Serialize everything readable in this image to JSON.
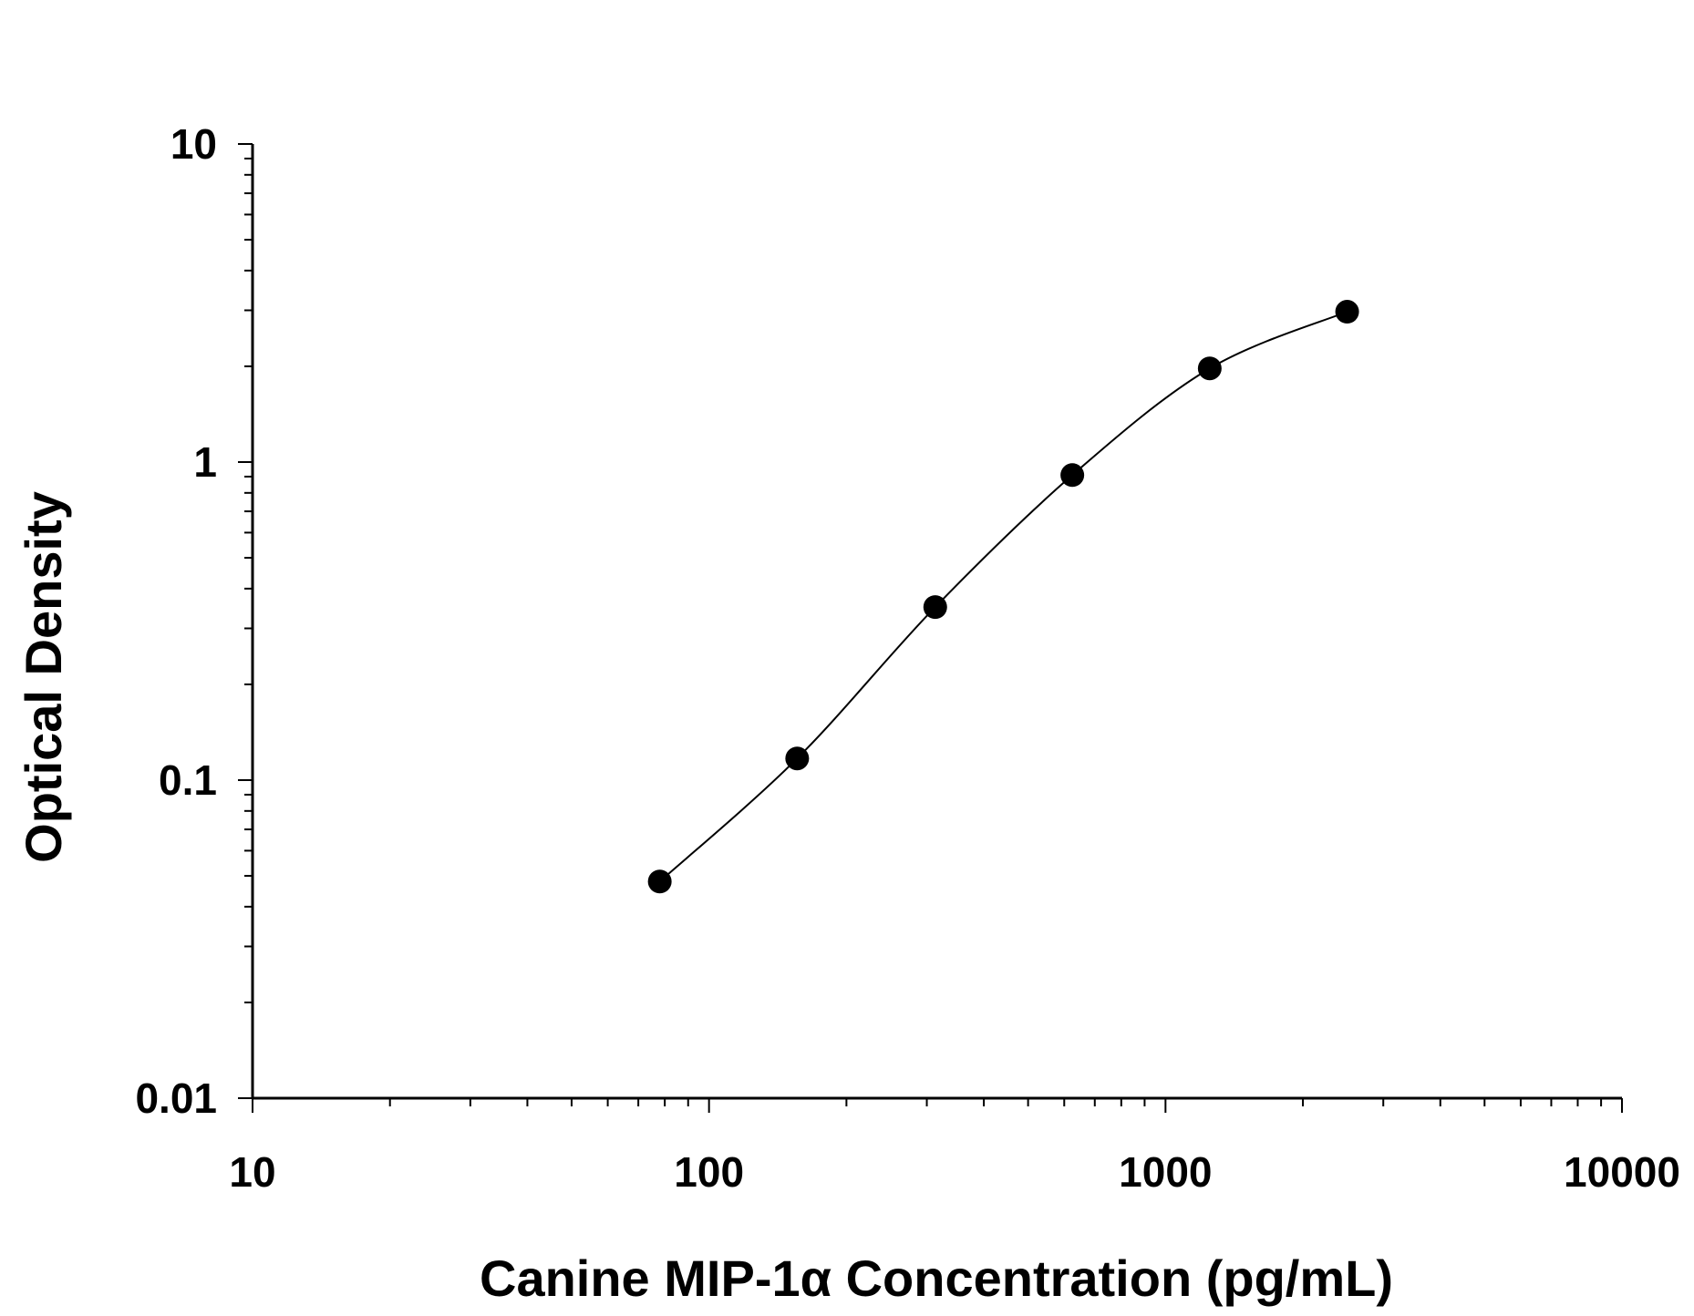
{
  "chart_data": {
    "type": "scatter",
    "xlabel": "Canine MIP-1α Concentration (pg/mL)",
    "ylabel": "Optical Density",
    "x_scale": "log",
    "y_scale": "log",
    "xlim": [
      10,
      10000
    ],
    "ylim": [
      0.01,
      10
    ],
    "x_ticks": [
      10,
      100,
      1000,
      10000
    ],
    "x_tick_labels": [
      "10",
      "100",
      "1000",
      "10000"
    ],
    "y_ticks": [
      0.01,
      0.1,
      1,
      10
    ],
    "y_tick_labels": [
      "0.01",
      "0.1",
      "1",
      "10"
    ],
    "grid": false,
    "legend": "none",
    "series": [
      {
        "x": [
          78,
          156,
          313,
          625,
          1250,
          2500
        ],
        "y": [
          0.048,
          0.117,
          0.35,
          0.91,
          1.97,
          2.97
        ],
        "marker": "filled-circle",
        "fit_line": true
      }
    ],
    "colors": {
      "marker": "#000000",
      "line": "#000000",
      "axis": "#000000"
    }
  }
}
